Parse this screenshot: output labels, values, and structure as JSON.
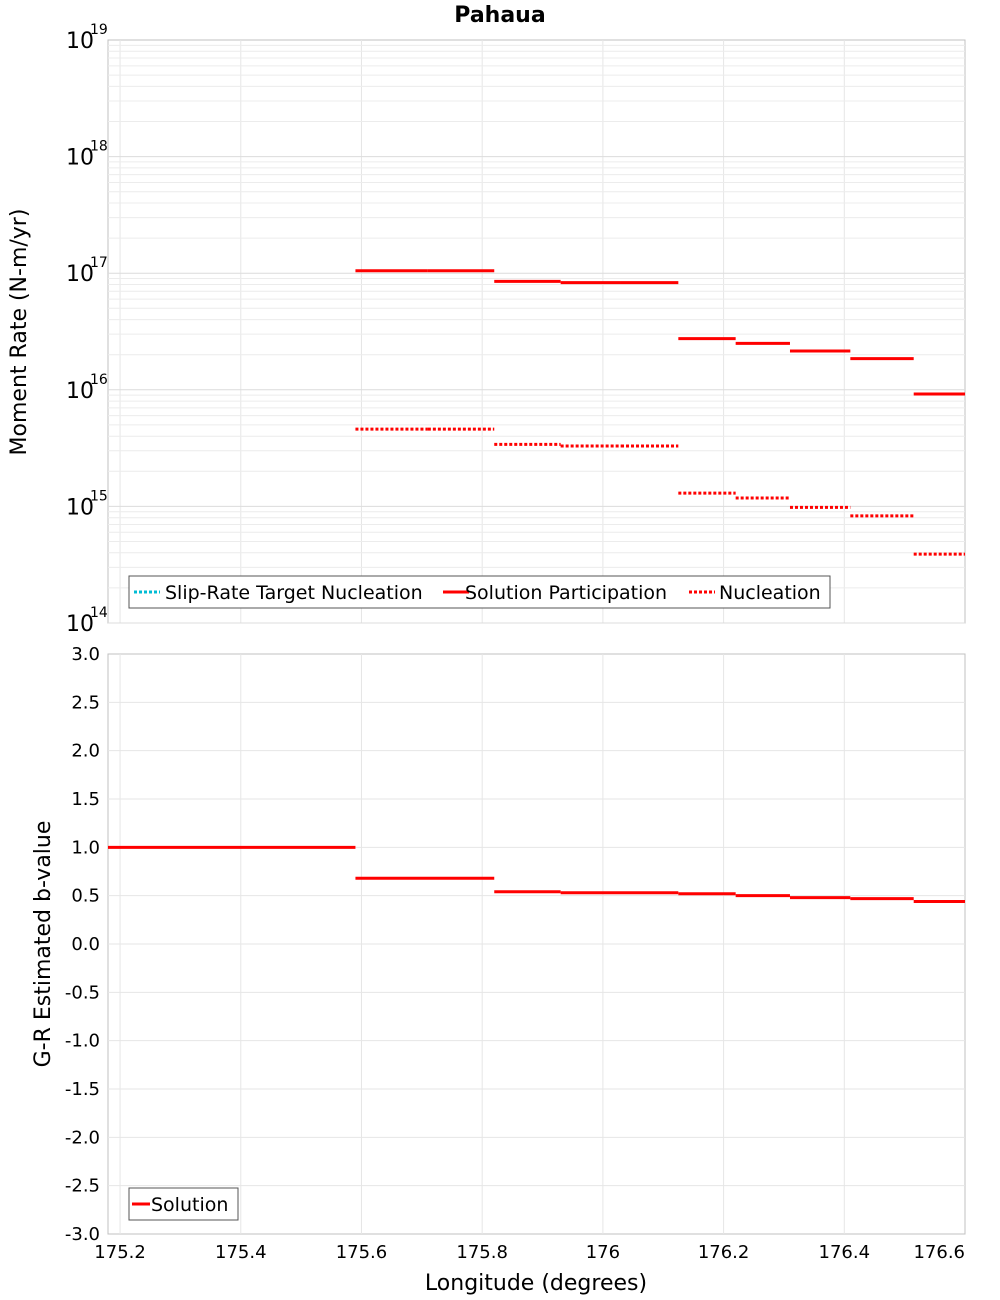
{
  "chart_data": [
    {
      "type": "line",
      "title": "Pahaua",
      "ylabel": "Moment Rate (N-m/yr)",
      "xlabel": "",
      "yscale": "log",
      "xlim": [
        175.18,
        176.6
      ],
      "ylim": [
        100000000000000.0,
        1e+19
      ],
      "y_ticks": [
        {
          "base": "10",
          "exp": "14",
          "value": 100000000000000.0
        },
        {
          "base": "10",
          "exp": "15",
          "value": 1000000000000000.0
        },
        {
          "base": "10",
          "exp": "16",
          "value": 1e+16
        },
        {
          "base": "10",
          "exp": "17",
          "value": 1e+17
        },
        {
          "base": "10",
          "exp": "18",
          "value": 1e+18
        },
        {
          "base": "10",
          "exp": "19",
          "value": 1e+19
        }
      ],
      "legend": {
        "position": "bottom-left",
        "entries": [
          {
            "label": "Slip-Rate Target Nucleation",
            "color": "#00bcd4",
            "style": "dotted"
          },
          {
            "label": "Solution Participation",
            "color": "#ff0000",
            "style": "solid"
          },
          {
            "label": "Nucleation",
            "color": "#ff0000",
            "style": "dotted"
          }
        ]
      },
      "series": [
        {
          "name": "Solution Participation",
          "color": "#ff0000",
          "style": "solid",
          "segments": [
            {
              "x0": 175.59,
              "x1": 175.71,
              "y": 1.05e+17
            },
            {
              "x0": 175.71,
              "x1": 175.82,
              "y": 1.05e+17
            },
            {
              "x0": 175.82,
              "x1": 175.93,
              "y": 8.5e+16
            },
            {
              "x0": 175.93,
              "x1": 176.03,
              "y": 8.3e+16
            },
            {
              "x0": 176.03,
              "x1": 176.125,
              "y": 8.3e+16
            },
            {
              "x0": 176.125,
              "x1": 176.22,
              "y": 2.75e+16
            },
            {
              "x0": 176.22,
              "x1": 176.31,
              "y": 2.5e+16
            },
            {
              "x0": 176.31,
              "x1": 176.41,
              "y": 2.15e+16
            },
            {
              "x0": 176.41,
              "x1": 176.515,
              "y": 1.85e+16
            },
            {
              "x0": 176.515,
              "x1": 176.6,
              "y": 9200000000000000.0
            }
          ]
        },
        {
          "name": "Nucleation",
          "color": "#ff0000",
          "style": "dotted",
          "segments": [
            {
              "x0": 175.59,
              "x1": 175.71,
              "y": 4600000000000000.0
            },
            {
              "x0": 175.71,
              "x1": 175.82,
              "y": 4600000000000000.0
            },
            {
              "x0": 175.82,
              "x1": 175.93,
              "y": 3400000000000000.0
            },
            {
              "x0": 175.93,
              "x1": 176.03,
              "y": 3300000000000000.0
            },
            {
              "x0": 176.03,
              "x1": 176.125,
              "y": 3300000000000000.0
            },
            {
              "x0": 176.125,
              "x1": 176.22,
              "y": 1300000000000000.0
            },
            {
              "x0": 176.22,
              "x1": 176.31,
              "y": 1180000000000000.0
            },
            {
              "x0": 176.31,
              "x1": 176.41,
              "y": 980000000000000.0
            },
            {
              "x0": 176.41,
              "x1": 176.515,
              "y": 830000000000000.0
            },
            {
              "x0": 176.515,
              "x1": 176.6,
              "y": 390000000000000.0
            }
          ]
        }
      ]
    },
    {
      "type": "line",
      "title": "",
      "ylabel": "G-R Estimated b-value",
      "xlabel": "Longitude (degrees)",
      "xlim": [
        175.18,
        176.6
      ],
      "ylim": [
        -3.0,
        3.0
      ],
      "x_ticks": [
        "175.2",
        "175.4",
        "175.6",
        "175.8",
        "176",
        "176.2",
        "176.4",
        "176.6"
      ],
      "x_tick_values": [
        175.2,
        175.4,
        175.6,
        175.8,
        176.0,
        176.2,
        176.4,
        176.6
      ],
      "y_ticks": [
        "3.0",
        "2.5",
        "2.0",
        "1.5",
        "1.0",
        "0.5",
        "0.0",
        "-0.5",
        "-1.0",
        "-1.5",
        "-2.0",
        "-2.5",
        "-3.0"
      ],
      "y_tick_values": [
        3.0,
        2.5,
        2.0,
        1.5,
        1.0,
        0.5,
        0.0,
        -0.5,
        -1.0,
        -1.5,
        -2.0,
        -2.5,
        -3.0
      ],
      "legend": {
        "position": "bottom-left",
        "entries": [
          {
            "label": "Solution",
            "color": "#ff0000",
            "style": "solid"
          }
        ]
      },
      "series": [
        {
          "name": "Solution",
          "color": "#ff0000",
          "style": "solid",
          "segments": [
            {
              "x0": 175.18,
              "x1": 175.59,
              "y": 1.0
            },
            {
              "x0": 175.59,
              "x1": 175.82,
              "y": 0.68
            },
            {
              "x0": 175.82,
              "x1": 175.93,
              "y": 0.54
            },
            {
              "x0": 175.93,
              "x1": 176.125,
              "y": 0.53
            },
            {
              "x0": 176.125,
              "x1": 176.22,
              "y": 0.52
            },
            {
              "x0": 176.22,
              "x1": 176.31,
              "y": 0.5
            },
            {
              "x0": 176.31,
              "x1": 176.41,
              "y": 0.48
            },
            {
              "x0": 176.41,
              "x1": 176.515,
              "y": 0.47
            },
            {
              "x0": 176.515,
              "x1": 176.6,
              "y": 0.44
            }
          ]
        }
      ]
    }
  ]
}
